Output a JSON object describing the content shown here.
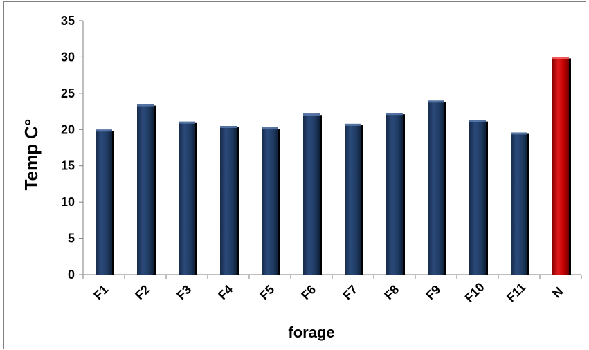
{
  "chart_data": {
    "type": "bar",
    "categories": [
      "F1",
      "F2",
      "F3",
      "F4",
      "F5",
      "F6",
      "F7",
      "F8",
      "F9",
      "F10",
      "F11",
      "N"
    ],
    "values": [
      20.0,
      23.5,
      21.1,
      20.5,
      20.3,
      22.2,
      20.8,
      22.3,
      24.0,
      21.3,
      19.6,
      30.0
    ],
    "xlabel": "forage",
    "ylabel": "Temp C°",
    "ylim": [
      0,
      35
    ],
    "yticks": [
      0,
      5,
      10,
      15,
      20,
      25,
      30,
      35
    ],
    "grid": false,
    "legend": "none",
    "colors": {
      "default_bar": "#1f3b63",
      "highlight_bar": "#c00000",
      "highlight_category": "N"
    }
  }
}
